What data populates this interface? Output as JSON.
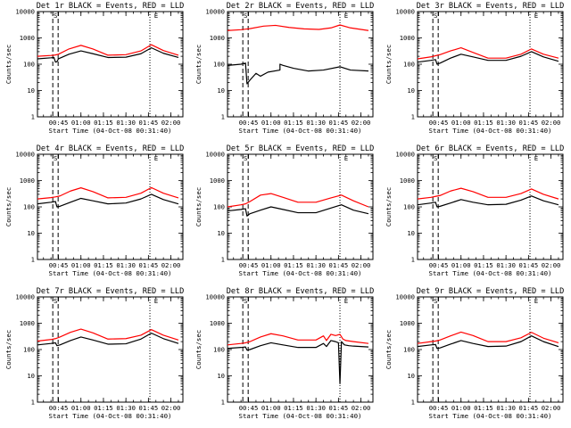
{
  "figure": {
    "black_label": "BLACK = Events",
    "red_label": "RED = LLD",
    "ylabel": "Counts/sec",
    "xlabel": "Start Time (04-Oct-08 00:31:40)",
    "colors": {
      "events": "#000000",
      "lld": "#ff0000",
      "axes": "#000000",
      "background": "#ffffff"
    }
  },
  "chart_data": [
    {
      "type": "line",
      "title": "Det 1r BLACK = Events, RED = LLD",
      "ylabel": "Counts/sec",
      "xlabel": "Start Time (04-Oct-08 00:31:40)",
      "x_ticks": [
        "00:45",
        "01:00",
        "01:15",
        "01:30",
        "01:45",
        "02:00"
      ],
      "y_ticks": [
        "1",
        "10",
        "100",
        "1000",
        "10000"
      ],
      "y_scale": "log",
      "ylim": [
        1,
        10000
      ],
      "grid": false,
      "markers": [
        {
          "time": "00:43",
          "label": "S"
        },
        {
          "time": "01:46",
          "label": "E"
        }
      ],
      "series": [
        {
          "x": [
            "00:31",
            "00:40",
            "00:42",
            "00:43",
            "00:45",
            "00:52",
            "01:00",
            "01:08",
            "01:18",
            "01:30",
            "01:40",
            "01:47",
            "01:55",
            "02:05"
          ],
          "values": [
            200,
            215,
            220,
            225,
            240,
            380,
            520,
            380,
            220,
            230,
            320,
            550,
            330,
            220
          ]
        },
        {
          "x": [
            "00:31",
            "00:40",
            "00:42",
            "00:43",
            "00:44",
            "00:45",
            "00:52",
            "01:00",
            "01:08",
            "01:18",
            "01:30",
            "01:40",
            "01:47",
            "01:55",
            "02:05"
          ],
          "values": [
            160,
            175,
            180,
            120,
            125,
            160,
            240,
            320,
            250,
            180,
            185,
            250,
            420,
            260,
            180
          ]
        }
      ]
    },
    {
      "type": "line",
      "title": "Det 2r BLACK = Events, RED = LLD",
      "ylabel": "Counts/sec",
      "xlabel": "Start Time (04-Oct-08 00:31:40)",
      "x_ticks": [
        "00:45",
        "01:00",
        "01:15",
        "01:30",
        "01:45",
        "02:00"
      ],
      "y_ticks": [
        "1",
        "10",
        "100",
        "1000",
        "10000"
      ],
      "y_scale": "log",
      "ylim": [
        1,
        10000
      ],
      "grid": false,
      "markers": [
        {
          "time": "00:43",
          "label": "S"
        },
        {
          "time": "01:46",
          "label": "E"
        }
      ],
      "series": [
        {
          "x": [
            "00:31",
            "00:40",
            "00:43",
            "00:46",
            "00:55",
            "01:03",
            "01:12",
            "01:22",
            "01:32",
            "01:40",
            "01:46",
            "01:53",
            "02:05"
          ],
          "values": [
            1900,
            2050,
            2150,
            2250,
            2800,
            3000,
            2500,
            2200,
            2100,
            2400,
            3100,
            2400,
            1900
          ]
        },
        {
          "x": [
            "00:31",
            "00:40",
            "00:43",
            "00:44",
            "00:46",
            "00:50",
            "00:53",
            "00:58",
            "01:06",
            "01:06",
            "01:08",
            "01:15",
            "01:25",
            "01:35",
            "01:46",
            "01:53",
            "02:05"
          ],
          "values": [
            90,
            100,
            110,
            18,
            25,
            45,
            35,
            50,
            60,
            100,
            90,
            70,
            55,
            60,
            80,
            60,
            55
          ]
        }
      ]
    },
    {
      "type": "line",
      "title": "Det 3r BLACK = Events, RED = LLD",
      "ylabel": "Counts/sec",
      "xlabel": "Start Time (04-Oct-08 00:31:40)",
      "x_ticks": [
        "00:45",
        "01:00",
        "01:15",
        "01:30",
        "01:45",
        "02:00"
      ],
      "y_ticks": [
        "1",
        "10",
        "100",
        "1000",
        "10000"
      ],
      "y_scale": "log",
      "ylim": [
        1,
        10000
      ],
      "grid": false,
      "markers": [
        {
          "time": "00:43",
          "label": "S"
        },
        {
          "time": "01:46",
          "label": "E"
        }
      ],
      "series": [
        {
          "x": [
            "00:31",
            "00:40",
            "00:43",
            "00:46",
            "00:53",
            "01:00",
            "01:08",
            "01:18",
            "01:30",
            "01:40",
            "01:47",
            "01:55",
            "02:05"
          ],
          "values": [
            160,
            190,
            210,
            230,
            320,
            420,
            280,
            170,
            170,
            240,
            380,
            240,
            170
          ]
        },
        {
          "x": [
            "00:31",
            "00:40",
            "00:43",
            "00:44",
            "00:46",
            "00:53",
            "01:00",
            "01:08",
            "01:18",
            "01:30",
            "01:40",
            "01:47",
            "01:55",
            "02:05"
          ],
          "values": [
            120,
            140,
            150,
            100,
            110,
            170,
            240,
            190,
            140,
            140,
            200,
            300,
            190,
            130
          ]
        }
      ]
    },
    {
      "type": "line",
      "title": "Det 4r BLACK = Events, RED = LLD",
      "ylabel": "Counts/sec",
      "xlabel": "Start Time (04-Oct-08 00:31:40)",
      "x_ticks": [
        "00:45",
        "01:00",
        "01:15",
        "01:30",
        "01:45",
        "02:00"
      ],
      "y_ticks": [
        "1",
        "10",
        "100",
        "1000",
        "10000"
      ],
      "y_scale": "log",
      "ylim": [
        1,
        10000
      ],
      "grid": false,
      "markers": [
        {
          "time": "00:43",
          "label": "S"
        },
        {
          "time": "01:46",
          "label": "E"
        }
      ],
      "series": [
        {
          "x": [
            "00:31",
            "00:40",
            "00:43",
            "00:46",
            "00:53",
            "01:00",
            "01:08",
            "01:18",
            "01:30",
            "01:40",
            "01:47",
            "01:55",
            "02:05"
          ],
          "values": [
            200,
            225,
            240,
            260,
            400,
            530,
            380,
            220,
            230,
            330,
            540,
            330,
            220
          ]
        },
        {
          "x": [
            "00:31",
            "00:40",
            "00:43",
            "00:44",
            "00:46",
            "00:53",
            "01:00",
            "01:08",
            "01:18",
            "01:30",
            "01:40",
            "01:47",
            "01:55",
            "02:05"
          ],
          "values": [
            130,
            150,
            160,
            100,
            105,
            150,
            210,
            170,
            130,
            140,
            200,
            300,
            190,
            130
          ]
        }
      ]
    },
    {
      "type": "line",
      "title": "Det 5r BLACK = Events, RED = LLD",
      "ylabel": "Counts/sec",
      "xlabel": "Start Time (04-Oct-08 00:31:40)",
      "x_ticks": [
        "00:45",
        "01:00",
        "01:15",
        "01:30",
        "01:45",
        "02:00"
      ],
      "y_ticks": [
        "1",
        "10",
        "100",
        "1000",
        "10000"
      ],
      "y_scale": "log",
      "ylim": [
        1,
        10000
      ],
      "grid": false,
      "markers": [
        {
          "time": "00:43",
          "label": "S"
        },
        {
          "time": "01:46",
          "label": "E"
        }
      ],
      "series": [
        {
          "x": [
            "00:31",
            "00:40",
            "00:43",
            "00:46",
            "00:53",
            "01:00",
            "01:08",
            "01:18",
            "01:30",
            "01:40",
            "01:47",
            "01:55",
            "02:05"
          ],
          "values": [
            100,
            120,
            130,
            160,
            280,
            320,
            230,
            150,
            150,
            220,
            280,
            170,
            100
          ]
        },
        {
          "x": [
            "00:31",
            "00:40",
            "00:43",
            "00:44",
            "00:46",
            "00:53",
            "01:00",
            "01:08",
            "01:18",
            "01:30",
            "01:40",
            "01:47",
            "01:55",
            "02:05"
          ],
          "values": [
            70,
            80,
            85,
            45,
            55,
            75,
            100,
            80,
            60,
            60,
            90,
            120,
            75,
            55
          ]
        }
      ]
    },
    {
      "type": "line",
      "title": "Det 6r BLACK = Events, RED = LLD",
      "ylabel": "Counts/sec",
      "xlabel": "Start Time (04-Oct-08 00:31:40)",
      "x_ticks": [
        "00:45",
        "01:00",
        "01:15",
        "01:30",
        "01:45",
        "02:00"
      ],
      "y_ticks": [
        "1",
        "10",
        "100",
        "1000",
        "10000"
      ],
      "y_scale": "log",
      "ylim": [
        1,
        10000
      ],
      "grid": false,
      "markers": [
        {
          "time": "00:43",
          "label": "S"
        },
        {
          "time": "01:46",
          "label": "E"
        }
      ],
      "series": [
        {
          "x": [
            "00:31",
            "00:40",
            "00:43",
            "00:46",
            "00:53",
            "01:00",
            "01:08",
            "01:18",
            "01:30",
            "01:40",
            "01:47",
            "01:55",
            "02:05"
          ],
          "values": [
            200,
            230,
            250,
            270,
            400,
            510,
            380,
            230,
            230,
            320,
            480,
            300,
            200
          ]
        },
        {
          "x": [
            "00:31",
            "00:40",
            "00:43",
            "00:44",
            "00:46",
            "00:53",
            "01:00",
            "01:08",
            "01:18",
            "01:30",
            "01:40",
            "01:47",
            "01:55",
            "02:05"
          ],
          "values": [
            120,
            140,
            150,
            100,
            105,
            140,
            190,
            150,
            120,
            125,
            180,
            260,
            170,
            120
          ]
        }
      ]
    },
    {
      "type": "line",
      "title": "Det 7r BLACK = Events, RED = LLD",
      "ylabel": "Counts/sec",
      "xlabel": "Start Time (04-Oct-08 00:31:40)",
      "x_ticks": [
        "00:45",
        "01:00",
        "01:15",
        "01:30",
        "01:45",
        "02:00"
      ],
      "y_ticks": [
        "1",
        "10",
        "100",
        "1000",
        "10000"
      ],
      "y_scale": "log",
      "ylim": [
        1,
        10000
      ],
      "grid": false,
      "markers": [
        {
          "time": "00:43",
          "label": "S"
        },
        {
          "time": "01:46",
          "label": "E"
        }
      ],
      "series": [
        {
          "x": [
            "00:31",
            "00:40",
            "00:43",
            "00:46",
            "00:53",
            "01:00",
            "01:08",
            "01:18",
            "01:30",
            "01:40",
            "01:47",
            "01:55",
            "02:05"
          ],
          "values": [
            210,
            240,
            260,
            300,
            450,
            600,
            430,
            250,
            260,
            350,
            570,
            350,
            230
          ]
        },
        {
          "x": [
            "00:31",
            "00:40",
            "00:43",
            "00:44",
            "00:46",
            "00:53",
            "01:00",
            "01:08",
            "01:18",
            "01:30",
            "01:40",
            "01:47",
            "01:55",
            "02:05"
          ],
          "values": [
            150,
            170,
            180,
            140,
            150,
            220,
            300,
            230,
            160,
            165,
            250,
            420,
            260,
            170
          ]
        }
      ]
    },
    {
      "type": "line",
      "title": "Det 8r BLACK = Events, RED = LLD",
      "ylabel": "Counts/sec",
      "xlabel": "Start Time (04-Oct-08 00:31:40)",
      "x_ticks": [
        "00:45",
        "01:00",
        "01:15",
        "01:30",
        "01:45",
        "02:00"
      ],
      "y_ticks": [
        "1",
        "10",
        "100",
        "1000",
        "10000"
      ],
      "y_scale": "log",
      "ylim": [
        1,
        10000
      ],
      "grid": false,
      "markers": [
        {
          "time": "00:43",
          "label": "S"
        },
        {
          "time": "01:46",
          "label": "E"
        }
      ],
      "series": [
        {
          "x": [
            "00:31",
            "00:40",
            "00:43",
            "00:46",
            "00:53",
            "01:00",
            "01:08",
            "01:18",
            "01:30",
            "01:35",
            "01:37",
            "01:40",
            "01:43",
            "01:44",
            "01:46",
            "01:48",
            "01:50",
            "01:55",
            "02:05"
          ],
          "values": [
            150,
            170,
            180,
            200,
            300,
            400,
            330,
            230,
            230,
            330,
            220,
            380,
            340,
            350,
            380,
            250,
            220,
            200,
            170
          ]
        },
        {
          "x": [
            "00:31",
            "00:40",
            "00:43",
            "00:44",
            "00:46",
            "00:53",
            "01:00",
            "01:08",
            "01:18",
            "01:30",
            "01:35",
            "01:37",
            "01:40",
            "01:43",
            "01:45",
            "01:46",
            "01:47",
            "01:49",
            "01:52",
            "01:55",
            "02:05"
          ],
          "values": [
            110,
            120,
            125,
            95,
            100,
            140,
            180,
            150,
            120,
            120,
            170,
            130,
            220,
            200,
            180,
            5,
            200,
            150,
            140,
            135,
            125
          ]
        }
      ]
    },
    {
      "type": "line",
      "title": "Det 9r BLACK = Events, RED = LLD",
      "ylabel": "Counts/sec",
      "xlabel": "Start Time (04-Oct-08 00:31:40)",
      "x_ticks": [
        "00:45",
        "01:00",
        "01:15",
        "01:30",
        "01:45",
        "02:00"
      ],
      "y_ticks": [
        "1",
        "10",
        "100",
        "1000",
        "10000"
      ],
      "y_scale": "log",
      "ylim": [
        1,
        10000
      ],
      "grid": false,
      "markers": [
        {
          "time": "00:43",
          "label": "S"
        },
        {
          "time": "01:46",
          "label": "E"
        }
      ],
      "series": [
        {
          "x": [
            "00:31",
            "00:40",
            "00:43",
            "00:46",
            "00:53",
            "01:00",
            "01:08",
            "01:18",
            "01:30",
            "01:40",
            "01:47",
            "01:55",
            "02:05"
          ],
          "values": [
            170,
            200,
            210,
            230,
            330,
            460,
            340,
            200,
            200,
            280,
            450,
            270,
            180
          ]
        },
        {
          "x": [
            "00:31",
            "00:40",
            "00:43",
            "00:44",
            "00:46",
            "00:53",
            "01:00",
            "01:08",
            "01:18",
            "01:30",
            "01:40",
            "01:47",
            "01:55",
            "02:05"
          ],
          "values": [
            130,
            150,
            155,
            110,
            115,
            160,
            220,
            170,
            130,
            135,
            200,
            330,
            200,
            130
          ]
        }
      ]
    }
  ]
}
